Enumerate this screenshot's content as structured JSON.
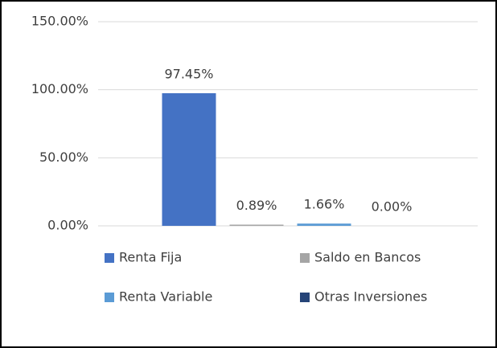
{
  "chart_data": {
    "type": "bar",
    "categories": [
      null
    ],
    "series": [
      {
        "name": "Renta Fija",
        "color": "#4472c4",
        "values": [
          97.45
        ],
        "value_labels": [
          "97.45%"
        ]
      },
      {
        "name": "Saldo en Bancos",
        "color": "#a5a5a5",
        "values": [
          0.89
        ],
        "value_labels": [
          "0.89%"
        ]
      },
      {
        "name": "Renta Variable",
        "color": "#5b9bd5",
        "values": [
          1.66
        ],
        "value_labels": [
          "1.66%"
        ]
      },
      {
        "name": "Otras Inversiones",
        "color": "#264478",
        "values": [
          0.0
        ],
        "value_labels": [
          "0.00%"
        ]
      }
    ],
    "ylim": [
      0,
      150
    ],
    "yticks": [
      {
        "value": 0,
        "label": "0.00%"
      },
      {
        "value": 50,
        "label": "50.00%"
      },
      {
        "value": 100,
        "label": "100.00%"
      },
      {
        "value": 150,
        "label": "150.00%"
      }
    ],
    "grid": true,
    "legend": "bottom"
  }
}
